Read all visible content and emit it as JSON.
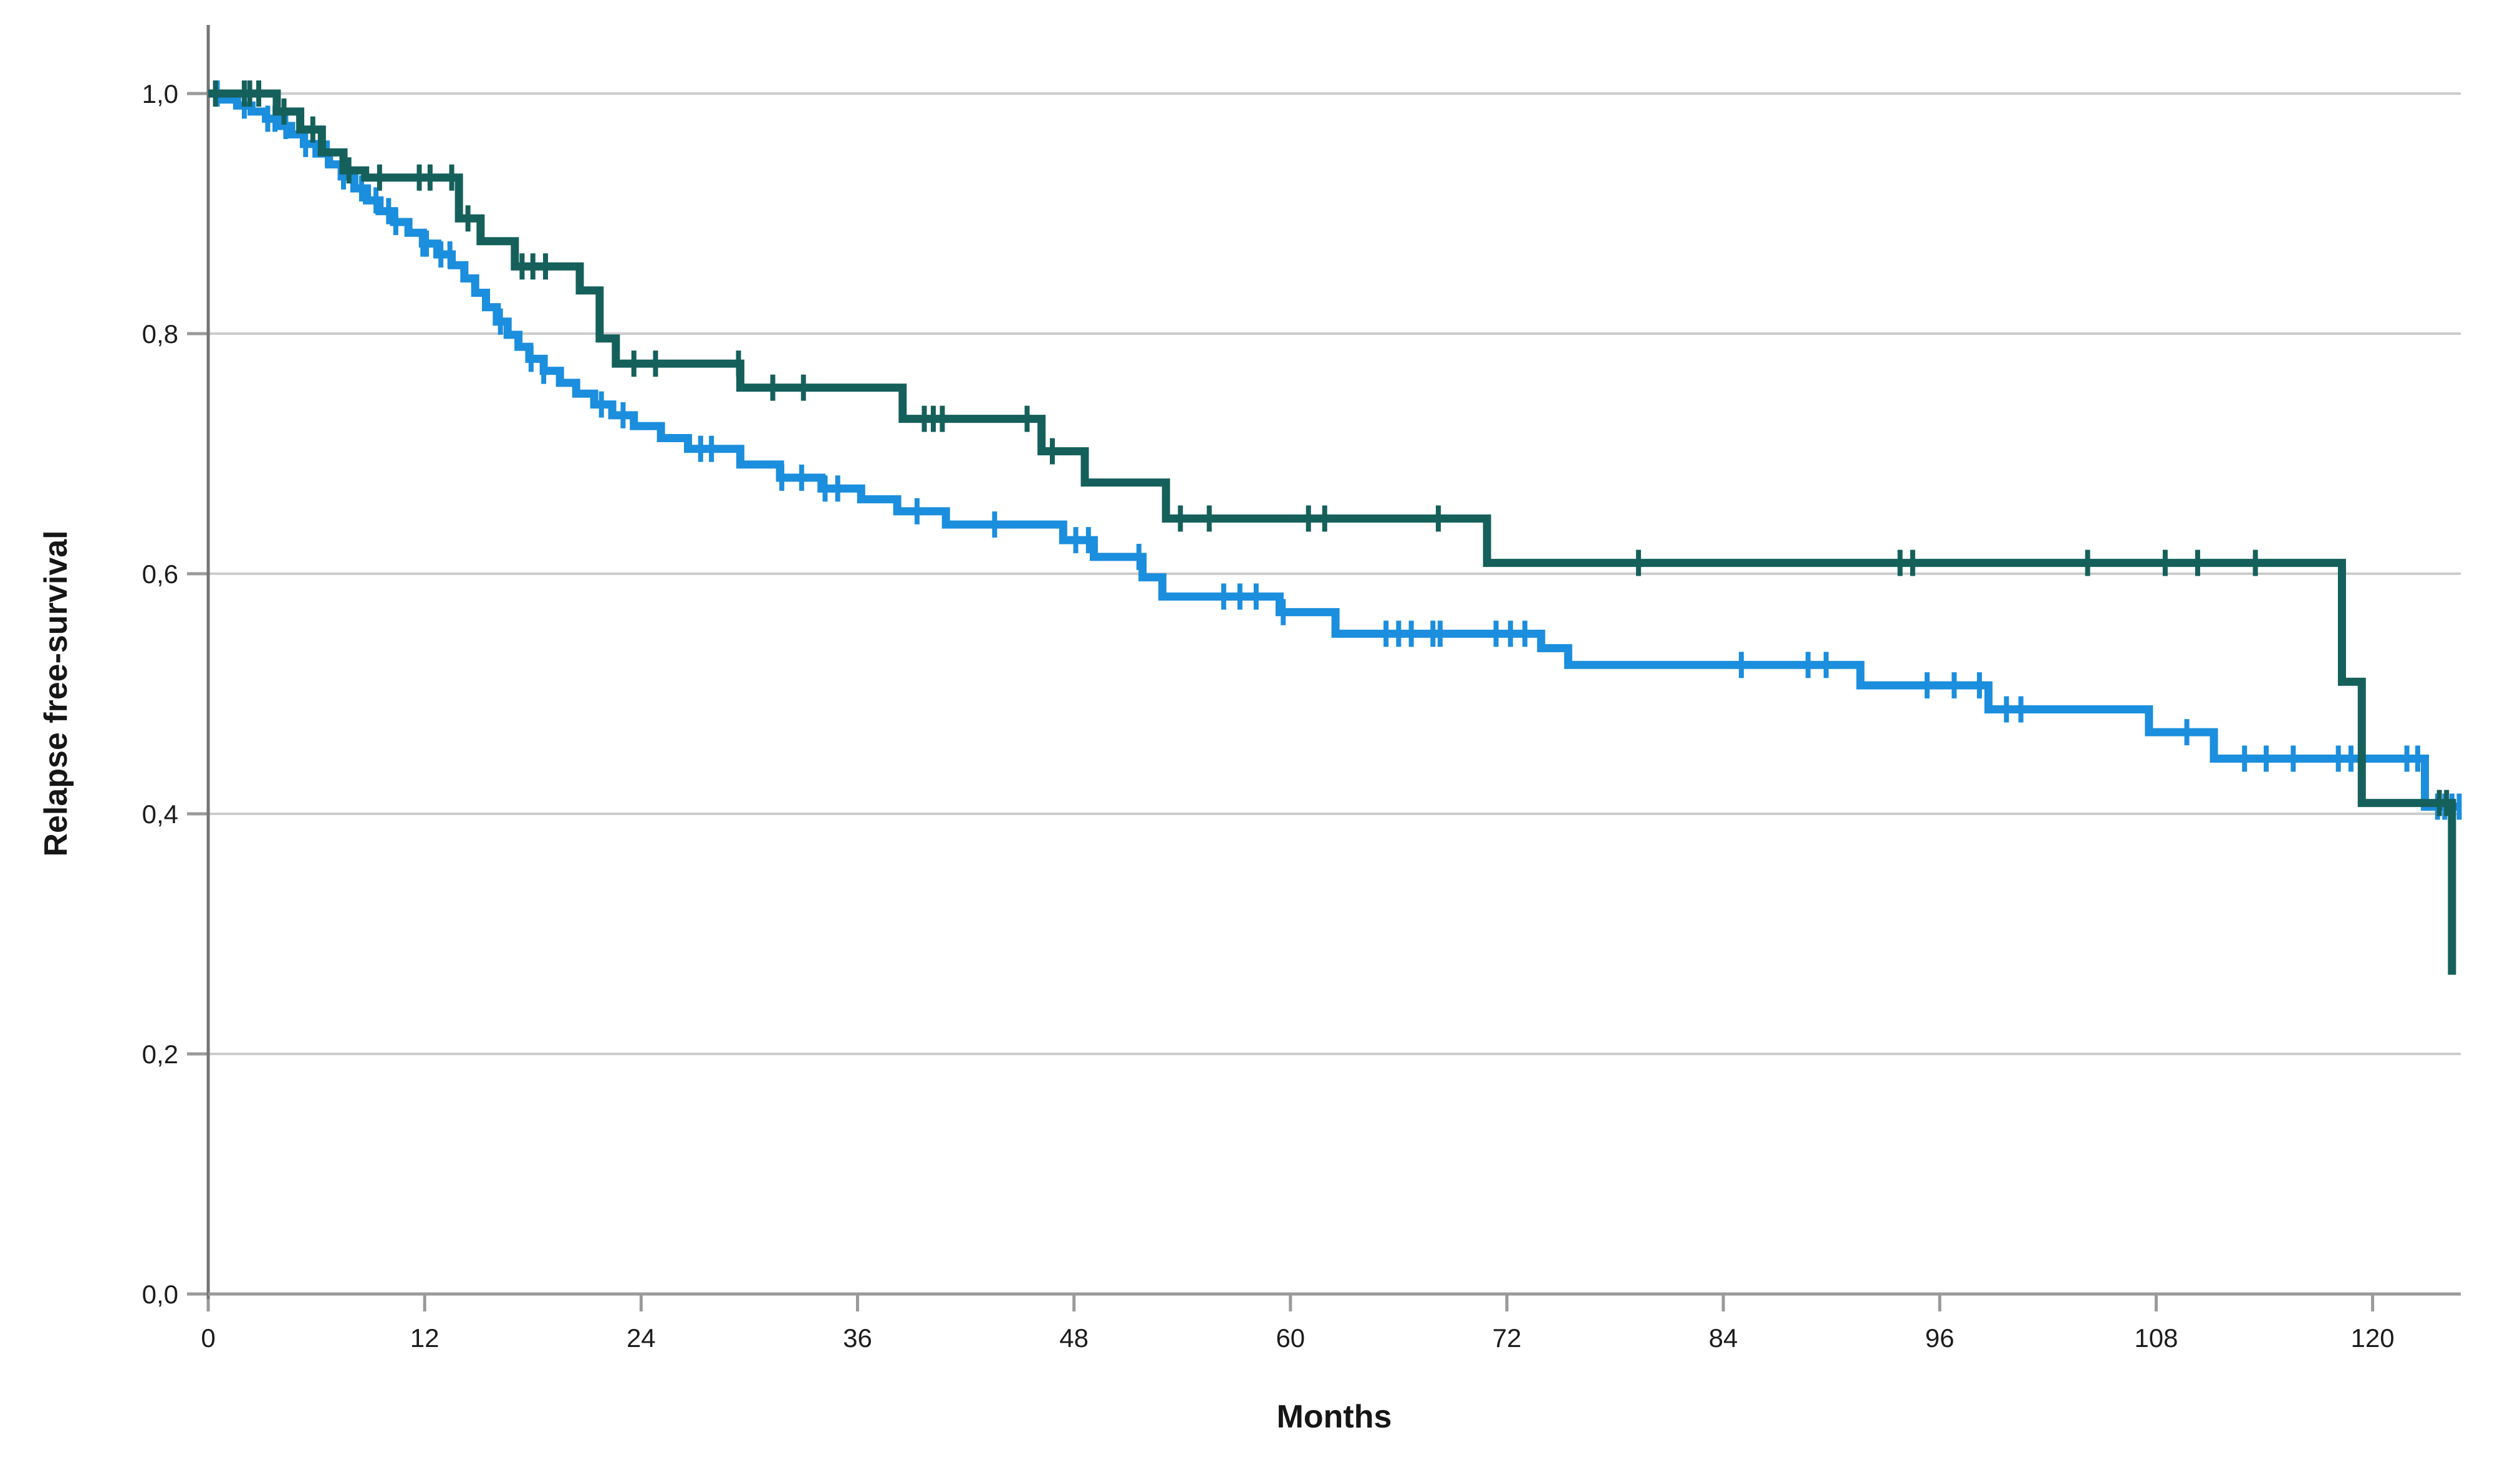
{
  "chart_data": {
    "type": "line",
    "subtype": "kaplan_meier_step",
    "xlabel": "Months",
    "ylabel": "Relapse free-survival",
    "legend": "none",
    "grid": "horizontal",
    "x_axis": {
      "min": 0,
      "max": 124.9,
      "ticks": [
        {
          "value": 0,
          "label": "0"
        },
        {
          "value": 12,
          "label": "12"
        },
        {
          "value": 24,
          "label": "24"
        },
        {
          "value": 36,
          "label": "36"
        },
        {
          "value": 48,
          "label": "48"
        },
        {
          "value": 60,
          "label": "60"
        },
        {
          "value": 72,
          "label": "72"
        },
        {
          "value": 84,
          "label": "84"
        },
        {
          "value": 96,
          "label": "96"
        },
        {
          "value": 108,
          "label": "108"
        },
        {
          "value": 120,
          "label": "120"
        }
      ]
    },
    "y_axis": {
      "min": 0.0,
      "max": 1.0,
      "ticks": [
        {
          "value": 0.0,
          "label": "0,0"
        },
        {
          "value": 0.2,
          "label": "0,2"
        },
        {
          "value": 0.4,
          "label": "0,4"
        },
        {
          "value": 0.6,
          "label": "0,6"
        },
        {
          "value": 0.8,
          "label": "0,8"
        },
        {
          "value": 1.0,
          "label": "1,0"
        }
      ]
    },
    "series": [
      {
        "name": "blue-group",
        "color": "#1b8edd",
        "steps": [
          [
            0,
            1.0
          ],
          [
            0.8,
            0.995
          ],
          [
            1.6,
            0.99
          ],
          [
            2.4,
            0.985
          ],
          [
            3.2,
            0.979
          ],
          [
            3.9,
            0.973
          ],
          [
            4.6,
            0.966
          ],
          [
            5.3,
            0.958
          ],
          [
            6.0,
            0.95
          ],
          [
            6.7,
            0.941
          ],
          [
            7.4,
            0.931
          ],
          [
            8.1,
            0.921
          ],
          [
            8.8,
            0.911
          ],
          [
            9.5,
            0.902
          ],
          [
            10.3,
            0.893
          ],
          [
            11.1,
            0.884
          ],
          [
            11.9,
            0.875
          ],
          [
            12.7,
            0.866
          ],
          [
            13.5,
            0.857
          ],
          [
            14.2,
            0.846
          ],
          [
            14.8,
            0.834
          ],
          [
            15.4,
            0.822
          ],
          [
            16.0,
            0.81
          ],
          [
            16.6,
            0.799
          ],
          [
            17.2,
            0.789
          ],
          [
            17.8,
            0.779
          ],
          [
            18.6,
            0.769
          ],
          [
            19.5,
            0.759
          ],
          [
            20.4,
            0.75
          ],
          [
            21.4,
            0.741
          ],
          [
            22.4,
            0.732
          ],
          [
            23.6,
            0.723
          ],
          [
            25.1,
            0.713
          ],
          [
            26.6,
            0.704
          ],
          [
            29.5,
            0.691
          ],
          [
            31.7,
            0.68
          ],
          [
            34.0,
            0.671
          ],
          [
            36.2,
            0.662
          ],
          [
            38.2,
            0.652
          ],
          [
            40.9,
            0.641
          ],
          [
            47.4,
            0.628
          ],
          [
            49.1,
            0.614
          ],
          [
            51.8,
            0.597
          ],
          [
            52.9,
            0.581
          ],
          [
            59.4,
            0.568
          ],
          [
            62.5,
            0.55
          ],
          [
            73.9,
            0.538
          ],
          [
            75.4,
            0.524
          ],
          [
            91.6,
            0.507
          ],
          [
            98.7,
            0.487
          ],
          [
            107.6,
            0.468
          ],
          [
            111.2,
            0.446
          ],
          [
            122.9,
            0.406
          ]
        ],
        "extend_to_month": 124.9,
        "censor_marks": [
          0.5,
          2.0,
          3.3,
          3.7,
          4.3,
          5.4,
          6.6,
          7.5,
          8.5,
          9.3,
          10.0,
          10.4,
          11.9,
          12.1,
          12.9,
          13.4,
          16.2,
          17.9,
          18.6,
          21.8,
          23.0,
          27.3,
          27.9,
          31.8,
          32.9,
          34.2,
          34.9,
          39.3,
          43.6,
          48.1,
          48.8,
          51.6,
          56.3,
          57.2,
          58.1,
          59.6,
          65.3,
          66.0,
          66.7,
          67.9,
          68.3,
          71.4,
          72.2,
          73.0,
          85.0,
          88.7,
          89.7,
          95.3,
          96.8,
          98.2,
          99.7,
          100.5,
          109.7,
          112.9,
          114.1,
          115.6,
          118.1,
          118.8,
          121.9,
          122.5,
          123.6,
          124.0,
          124.4,
          124.8
        ]
      },
      {
        "name": "green-group",
        "color": "#15605b",
        "steps": [
          [
            0,
            1.0
          ],
          [
            3.8,
            0.985
          ],
          [
            5.1,
            0.97
          ],
          [
            6.3,
            0.951
          ],
          [
            7.5,
            0.936
          ],
          [
            8.7,
            0.93
          ],
          [
            13.9,
            0.896
          ],
          [
            15.1,
            0.877
          ],
          [
            17.0,
            0.856
          ],
          [
            20.6,
            0.836
          ],
          [
            21.7,
            0.796
          ],
          [
            22.6,
            0.775
          ],
          [
            29.5,
            0.755
          ],
          [
            38.5,
            0.729
          ],
          [
            46.2,
            0.702
          ],
          [
            48.6,
            0.676
          ],
          [
            53.1,
            0.646
          ],
          [
            70.9,
            0.609
          ],
          [
            118.3,
            0.51
          ],
          [
            119.4,
            0.409
          ],
          [
            124.4,
            0.266
          ]
        ],
        "censor_marks": [
          0.4,
          2.0,
          2.3,
          2.8,
          4.2,
          5.8,
          7.8,
          9.5,
          11.7,
          12.3,
          13.5,
          14.4,
          17.4,
          18.0,
          18.7,
          23.6,
          24.8,
          29.4,
          31.3,
          33.0,
          39.7,
          40.2,
          40.7,
          45.4,
          46.8,
          53.9,
          55.5,
          61.0,
          61.9,
          68.2,
          79.3,
          93.8,
          94.5,
          104.2,
          108.5,
          110.3,
          113.5,
          123.7,
          124.1
        ]
      }
    ],
    "style": {
      "background": "#ffffff",
      "gridline_color": "#cccccc",
      "tick_color": "#9a9a9a",
      "axis_line_color": "#757575",
      "text_color": "#1c1c1c"
    }
  }
}
